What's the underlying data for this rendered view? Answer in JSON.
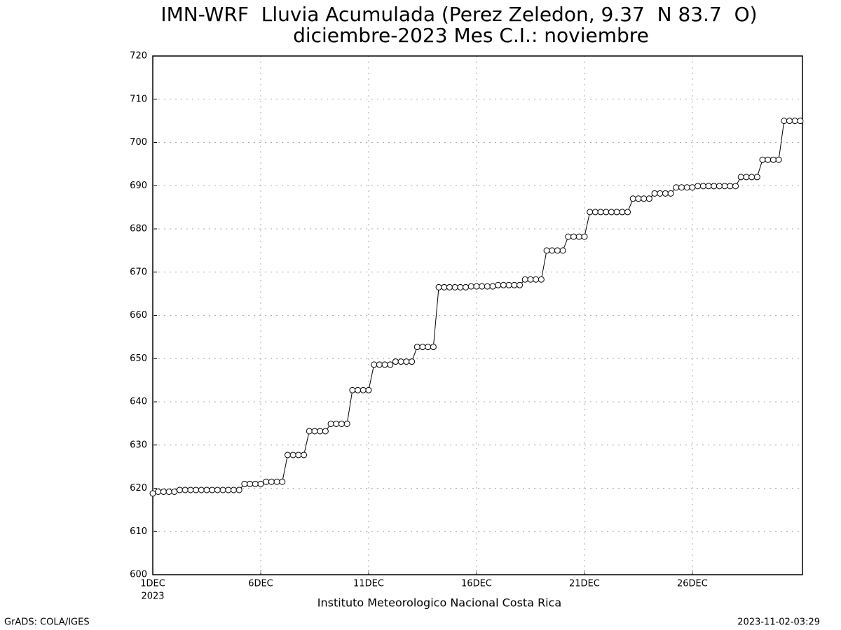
{
  "chart_data": {
    "type": "line",
    "title": "IMN-WRF  Lluvia Acumulada (Perez Zeledon, 9.37  N 83.7  O)",
    "subtitle": "diciembre-2023 Mes C.I.: noviembre",
    "x_label": "Instituto Meteorologico Nacional Costa Rica",
    "x_year_label": "2023",
    "footer_left": "GrADS: COLA/IGES",
    "footer_right": "2023-11-02-03:29",
    "grid": true,
    "series": [
      {
        "color": "#000000",
        "x": [
          0,
          0.25,
          0.5,
          0.75,
          1,
          1.25,
          1.5,
          1.75,
          2,
          2.25,
          2.5,
          2.75,
          3,
          3.25,
          3.5,
          3.75,
          4,
          4.25,
          4.5,
          4.75,
          5,
          5.25,
          5.5,
          5.75,
          6,
          6.25,
          6.5,
          6.75,
          7,
          7.25,
          7.5,
          7.75,
          8,
          8.25,
          8.5,
          8.75,
          9,
          9.25,
          9.5,
          9.75,
          10,
          10.25,
          10.5,
          10.75,
          11,
          11.25,
          11.5,
          11.75,
          12,
          12.25,
          12.5,
          12.75,
          13,
          13.25,
          13.5,
          13.75,
          14,
          14.25,
          14.5,
          14.75,
          15,
          15.25,
          15.5,
          15.75,
          16,
          16.25,
          16.5,
          16.75,
          17,
          17.25,
          17.5,
          17.75,
          18,
          18.25,
          18.5,
          18.75,
          19,
          19.25,
          19.5,
          19.75,
          20,
          20.25,
          20.5,
          20.75,
          21,
          21.25,
          21.5,
          21.75,
          22,
          22.25,
          22.5,
          22.75,
          23,
          23.25,
          23.5,
          23.75,
          24,
          24.25,
          24.5,
          24.75,
          25,
          25.25,
          25.5,
          25.75,
          26,
          26.25,
          26.5,
          26.75,
          27,
          27.25,
          27.5,
          27.75,
          28,
          28.25,
          28.5,
          28.75,
          29,
          29.25,
          29.5,
          29.75,
          30
        ],
        "values": [
          618.8,
          619.2,
          619.2,
          619.2,
          619.2,
          619.6,
          619.6,
          619.6,
          619.6,
          619.6,
          619.6,
          619.6,
          619.6,
          619.6,
          619.6,
          619.6,
          619.6,
          621,
          621,
          621,
          621,
          621.5,
          621.5,
          621.5,
          621.5,
          627.7,
          627.7,
          627.7,
          627.7,
          633.2,
          633.2,
          633.2,
          633.2,
          634.9,
          634.9,
          634.9,
          634.9,
          642.7,
          642.7,
          642.7,
          642.7,
          648.6,
          648.6,
          648.6,
          648.6,
          649.3,
          649.3,
          649.3,
          649.3,
          652.7,
          652.7,
          652.7,
          652.7,
          666.5,
          666.5,
          666.5,
          666.5,
          666.5,
          666.5,
          666.7,
          666.7,
          666.7,
          666.7,
          666.7,
          667,
          667,
          667,
          667,
          667,
          668.3,
          668.3,
          668.3,
          668.3,
          675,
          675,
          675,
          675,
          678.2,
          678.2,
          678.2,
          678.2,
          683.9,
          683.9,
          683.9,
          683.9,
          683.9,
          683.9,
          683.9,
          683.9,
          687,
          687,
          687,
          687,
          688.2,
          688.2,
          688.2,
          688.2,
          689.6,
          689.6,
          689.6,
          689.6,
          689.9,
          689.9,
          689.9,
          689.9,
          689.9,
          689.9,
          689.9,
          689.9,
          692,
          692,
          692,
          692,
          696,
          696,
          696,
          696,
          705,
          705,
          705,
          705
        ]
      }
    ],
    "xlim": [
      0,
      30.1
    ],
    "xticks": [
      {
        "value": 0,
        "label": "1DEC"
      },
      {
        "value": 5,
        "label": "6DEC"
      },
      {
        "value": 10,
        "label": "11DEC"
      },
      {
        "value": 15,
        "label": "16DEC"
      },
      {
        "value": 20,
        "label": "21DEC"
      },
      {
        "value": 25,
        "label": "26DEC"
      }
    ],
    "ylim": [
      600,
      720
    ],
    "yticks": [
      600,
      610,
      620,
      630,
      640,
      650,
      660,
      670,
      680,
      690,
      700,
      710,
      720
    ]
  }
}
